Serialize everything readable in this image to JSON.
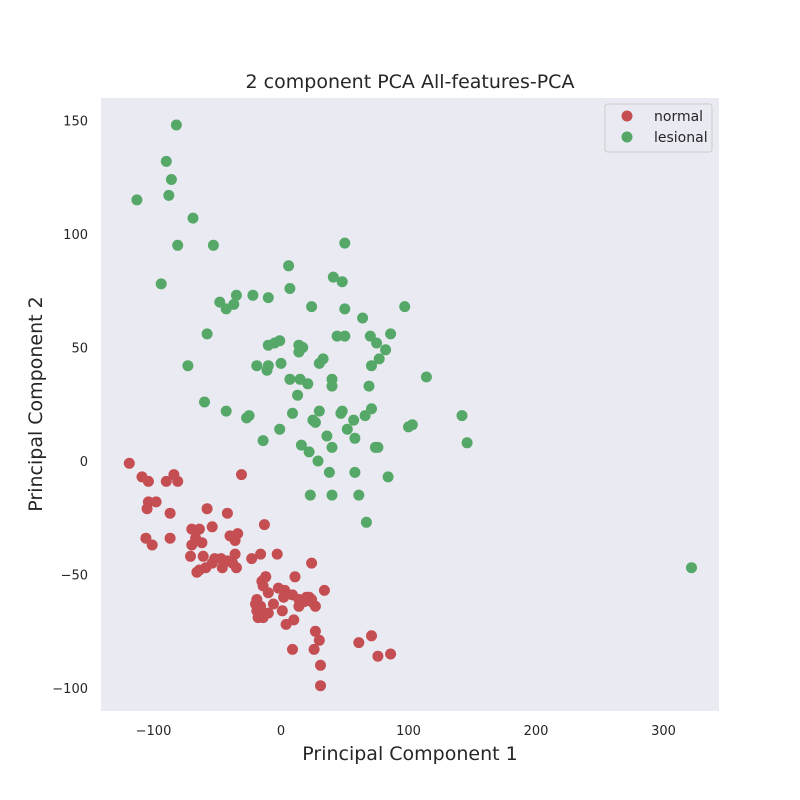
{
  "chart_data": {
    "type": "scatter",
    "title": "2 component PCA All-features-PCA",
    "xlabel": "Principal Component 1",
    "ylabel": "Principal Component 2",
    "xlim": [
      -140,
      345
    ],
    "ylim": [
      -110,
      160
    ],
    "xticks": [
      -100,
      0,
      100,
      200,
      300
    ],
    "yticks": [
      -100,
      -50,
      0,
      50,
      100,
      150
    ],
    "xtick_labels": [
      "−100",
      "0",
      "100",
      "200",
      "300"
    ],
    "ytick_labels": [
      "−100",
      "−50",
      "0",
      "50",
      "100",
      "150"
    ],
    "grid": false,
    "legend_position": "top-right",
    "plot_background": "#eaeaf2",
    "series": [
      {
        "name": "normal",
        "color": "#c44e52",
        "points": [
          [
            -119,
            -1
          ],
          [
            -109,
            -7
          ],
          [
            -104,
            -9
          ],
          [
            -104,
            -18
          ],
          [
            -105,
            -21
          ],
          [
            -98,
            -18
          ],
          [
            -90,
            -9
          ],
          [
            -84,
            -6
          ],
          [
            -81,
            -9
          ],
          [
            -87,
            -23
          ],
          [
            -106,
            -34
          ],
          [
            -101,
            -37
          ],
          [
            -87,
            -34
          ],
          [
            -70,
            -30
          ],
          [
            -64,
            -30
          ],
          [
            -58,
            -21
          ],
          [
            -54,
            -29
          ],
          [
            -42,
            -23
          ],
          [
            -31,
            -6
          ],
          [
            -40,
            -33
          ],
          [
            -36,
            -35
          ],
          [
            -36,
            -41
          ],
          [
            -34,
            -32
          ],
          [
            -13,
            -28
          ],
          [
            -70,
            -37
          ],
          [
            -67,
            -34
          ],
          [
            -62,
            -36
          ],
          [
            -71,
            -42
          ],
          [
            -61,
            -42
          ],
          [
            -52,
            -43
          ],
          [
            -47,
            -43
          ],
          [
            -46,
            -47
          ],
          [
            -54,
            -45
          ],
          [
            -59,
            -47
          ],
          [
            -64,
            -48
          ],
          [
            -66,
            -49
          ],
          [
            -35,
            -47
          ],
          [
            -38,
            -45
          ],
          [
            -42,
            -44
          ],
          [
            -23,
            -43
          ],
          [
            -16,
            -41
          ],
          [
            -3,
            -41
          ],
          [
            -12,
            -51
          ],
          [
            -14,
            -55
          ],
          [
            -10,
            -58
          ],
          [
            -6,
            -63
          ],
          [
            -10,
            -67
          ],
          [
            -14,
            -69
          ],
          [
            -16,
            -64
          ],
          [
            -20,
            -63
          ],
          [
            -19,
            -66
          ],
          [
            -18,
            -69
          ],
          [
            -15,
            -67
          ],
          [
            -19,
            -61
          ],
          [
            -12,
            -51
          ],
          [
            -2,
            -56
          ],
          [
            3,
            -57
          ],
          [
            2,
            -60
          ],
          [
            9,
            -59
          ],
          [
            11,
            -51
          ],
          [
            14,
            -61
          ],
          [
            18,
            -62
          ],
          [
            14,
            -64
          ],
          [
            22,
            -60
          ],
          [
            24,
            -62
          ],
          [
            27,
            -64
          ],
          [
            24,
            -61
          ],
          [
            20,
            -60
          ],
          [
            24,
            -45
          ],
          [
            34,
            -57
          ],
          [
            1,
            -66
          ],
          [
            10,
            -70
          ],
          [
            4,
            -72
          ],
          [
            27,
            -75
          ],
          [
            30,
            -79
          ],
          [
            26,
            -83
          ],
          [
            9,
            -83
          ],
          [
            31,
            -90
          ],
          [
            31,
            -99
          ],
          [
            61,
            -80
          ],
          [
            71,
            -77
          ],
          [
            76,
            -86
          ],
          [
            86,
            -85
          ],
          [
            -15,
            -53
          ]
        ]
      },
      {
        "name": "lesional",
        "color": "#55a868",
        "points": [
          [
            -82,
            148
          ],
          [
            -90,
            132
          ],
          [
            -86,
            124
          ],
          [
            -88,
            117
          ],
          [
            -113,
            115
          ],
          [
            -69,
            107
          ],
          [
            -81,
            95
          ],
          [
            -53,
            95
          ],
          [
            -94,
            78
          ],
          [
            6,
            86
          ],
          [
            50,
            96
          ],
          [
            7,
            76
          ],
          [
            41,
            81
          ],
          [
            48,
            79
          ],
          [
            -35,
            73
          ],
          [
            -22,
            73
          ],
          [
            -10,
            72
          ],
          [
            -48,
            70
          ],
          [
            -37,
            69
          ],
          [
            -43,
            67
          ],
          [
            24,
            68
          ],
          [
            50,
            67
          ],
          [
            97,
            68
          ],
          [
            64,
            63
          ],
          [
            -58,
            56
          ],
          [
            -10,
            51
          ],
          [
            -5,
            52
          ],
          [
            -1,
            53
          ],
          [
            14,
            51
          ],
          [
            17,
            50
          ],
          [
            14,
            48
          ],
          [
            44,
            55
          ],
          [
            50,
            55
          ],
          [
            70,
            55
          ],
          [
            75,
            52
          ],
          [
            82,
            49
          ],
          [
            86,
            56
          ],
          [
            33,
            45
          ],
          [
            30,
            43
          ],
          [
            -19,
            42
          ],
          [
            -10,
            42
          ],
          [
            0,
            43
          ],
          [
            -73,
            42
          ],
          [
            -11,
            40
          ],
          [
            21,
            34
          ],
          [
            40,
            36
          ],
          [
            40,
            33
          ],
          [
            69,
            33
          ],
          [
            77,
            45
          ],
          [
            71,
            42
          ],
          [
            114,
            37
          ],
          [
            7,
            36
          ],
          [
            15,
            36
          ],
          [
            13,
            29
          ],
          [
            -60,
            26
          ],
          [
            -43,
            22
          ],
          [
            -27,
            19
          ],
          [
            -25,
            20
          ],
          [
            9,
            21
          ],
          [
            30,
            22
          ],
          [
            25,
            18
          ],
          [
            27,
            17
          ],
          [
            47,
            21
          ],
          [
            48,
            22
          ],
          [
            57,
            18
          ],
          [
            66,
            20
          ],
          [
            71,
            23
          ],
          [
            100,
            15
          ],
          [
            103,
            16
          ],
          [
            142,
            20
          ],
          [
            146,
            8
          ],
          [
            -1,
            14
          ],
          [
            -14,
            9
          ],
          [
            16,
            7
          ],
          [
            22,
            4
          ],
          [
            36,
            11
          ],
          [
            40,
            6
          ],
          [
            52,
            14
          ],
          [
            58,
            10
          ],
          [
            74,
            6
          ],
          [
            76,
            6
          ],
          [
            29,
            0
          ],
          [
            38,
            -5
          ],
          [
            58,
            -5
          ],
          [
            84,
            -7
          ],
          [
            23,
            -15
          ],
          [
            40,
            -15
          ],
          [
            61,
            -15
          ],
          [
            67,
            -27
          ],
          [
            322,
            -47
          ]
        ]
      }
    ]
  }
}
